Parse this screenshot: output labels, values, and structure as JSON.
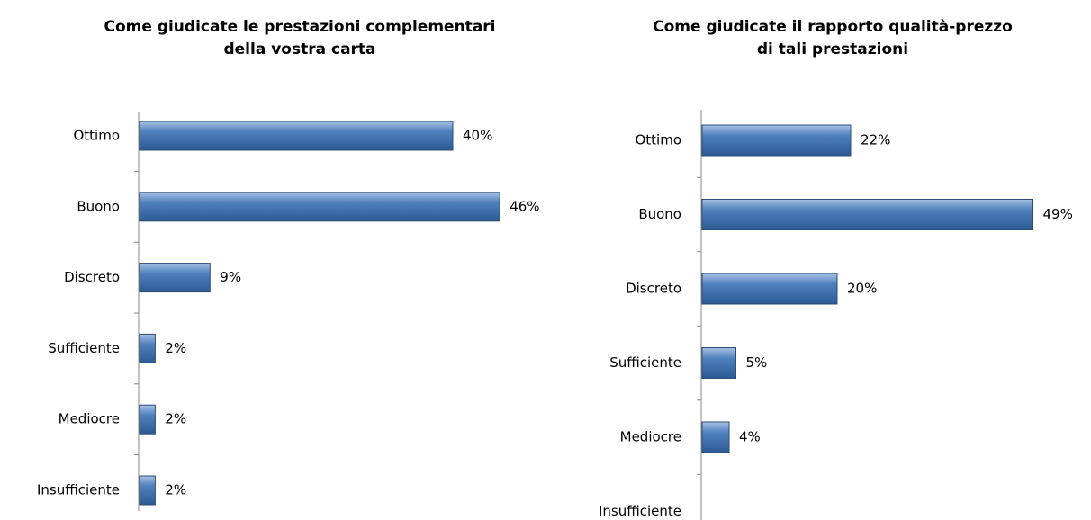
{
  "chart_data": [
    {
      "type": "bar",
      "title": [
        "Come giudicate le prestazioni complementari",
        "della vostra carta"
      ],
      "categories": [
        "Ottimo",
        "Buono",
        "Discreto",
        "Sufficiente",
        "Mediocre",
        "Insufficiente"
      ],
      "values": [
        40,
        46,
        9,
        2,
        2,
        2
      ],
      "value_labels": [
        "40%",
        "46%",
        "9%",
        "2%",
        "2%",
        "2%"
      ],
      "color": "#4f81bd"
    },
    {
      "type": "bar",
      "title": [
        "Come giudicate il rapporto qualità-prezzo",
        "di tali prestazioni"
      ],
      "categories": [
        "Ottimo",
        "Buono",
        "Discreto",
        "Sufficiente",
        "Mediocre",
        "Insufficiente"
      ],
      "values": [
        22,
        49,
        20,
        5,
        4,
        0
      ],
      "value_labels": [
        "22%",
        "49%",
        "20%",
        "5%",
        "4%",
        null
      ],
      "color": "#4f81bd"
    }
  ]
}
